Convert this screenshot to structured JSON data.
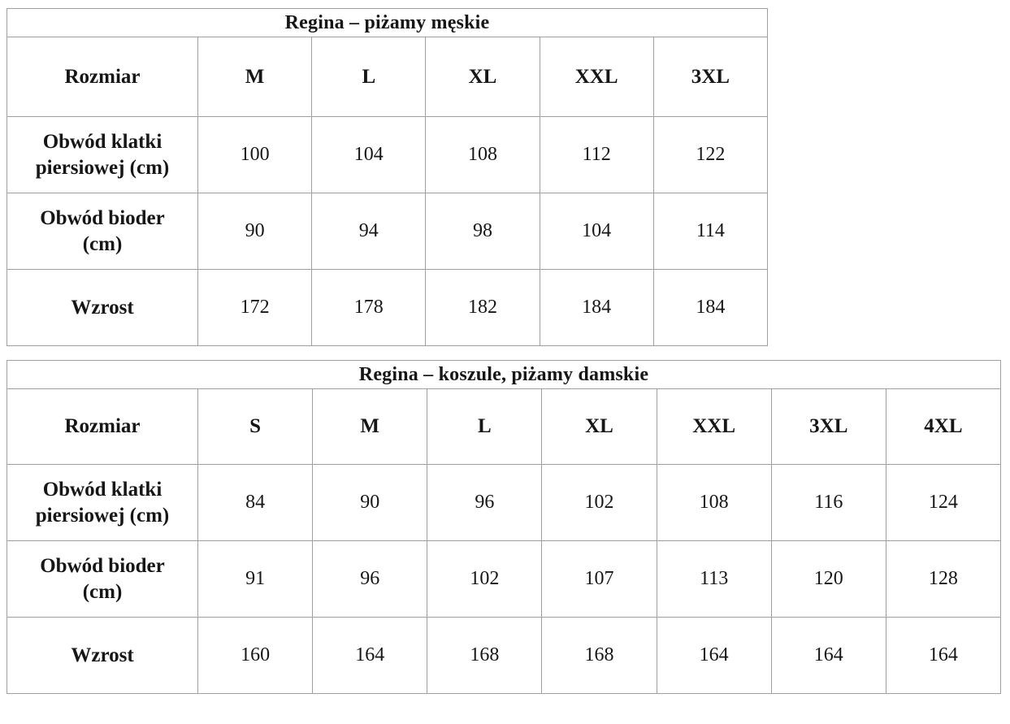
{
  "tables": [
    {
      "title": "Regina – piżamy męskie",
      "header": [
        "Rozmiar",
        "M",
        "L",
        "XL",
        "XXL",
        "3XL"
      ],
      "rows": [
        {
          "label": "Obwód klatki piersiowej (cm)",
          "values": [
            "100",
            "104",
            "108",
            "112",
            "122"
          ]
        },
        {
          "label": "Obwód bioder (cm)",
          "values": [
            "90",
            "94",
            "98",
            "104",
            "114"
          ]
        },
        {
          "label": "Wzrost",
          "values": [
            "172",
            "178",
            "182",
            "184",
            "184"
          ]
        }
      ]
    },
    {
      "title": "Regina – koszule, piżamy damskie",
      "header": [
        "Rozmiar",
        "S",
        "M",
        "L",
        "XL",
        "XXL",
        "3XL",
        "4XL"
      ],
      "rows": [
        {
          "label": "Obwód klatki piersiowej (cm)",
          "values": [
            "84",
            "90",
            "96",
            "102",
            "108",
            "116",
            "124"
          ]
        },
        {
          "label": "Obwód bioder (cm)",
          "values": [
            "91",
            "96",
            "102",
            "107",
            "113",
            "120",
            "128"
          ]
        },
        {
          "label": "Wzrost",
          "values": [
            "160",
            "164",
            "168",
            "168",
            "164",
            "164",
            "164"
          ]
        }
      ]
    }
  ],
  "colors": {
    "background": "#ffffff",
    "border": "#9f9f9f",
    "text": "#161616"
  }
}
